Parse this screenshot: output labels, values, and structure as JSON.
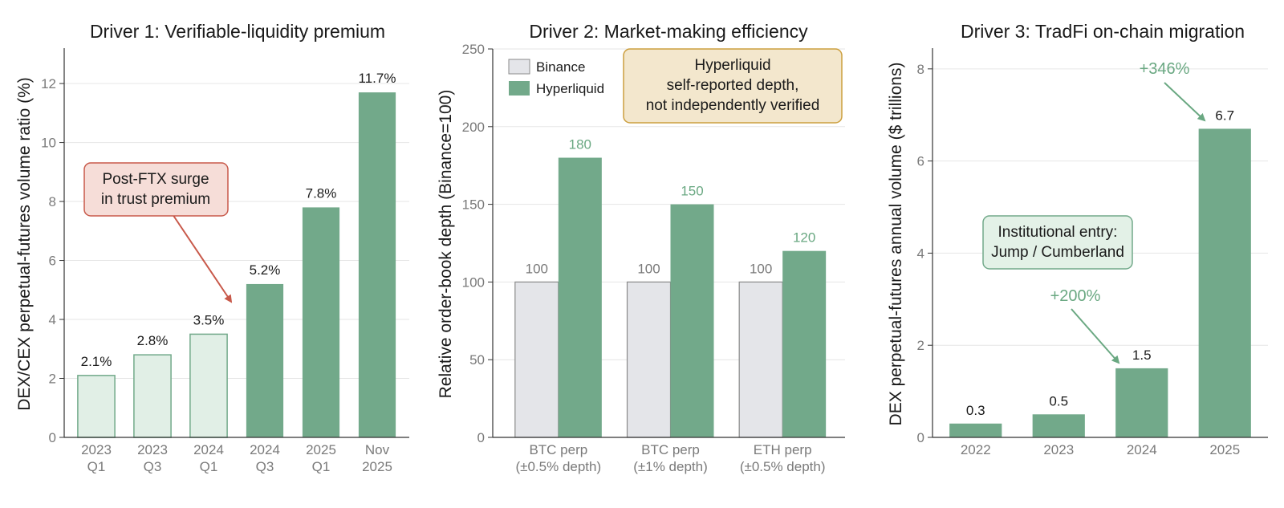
{
  "colors": {
    "dark_green": "#72a98a",
    "light_green": "#e1efe6",
    "light_green_edge": "#72a98a",
    "binance_gray": "#e4e5e9",
    "binance_edge": "#8a8a8a",
    "grid": "#e6e6e6",
    "axis": "#333333",
    "red_arrow": "#c8594a",
    "green_text": "#6aa882",
    "box_red_fill": "#f6ddd8",
    "box_red_edge": "#c8594a",
    "box_tan_fill": "#f3e7cd",
    "box_tan_edge": "#cc9f3e",
    "box_green_fill": "#e3f1e7",
    "box_green_edge": "#72a98a"
  },
  "chart_data": [
    {
      "type": "bar",
      "title": "Driver 1: Verifiable-liquidity premium",
      "ylabel": "DEX/CEX perpetual-futures volume ratio (%)",
      "xlabel": "",
      "ylim": [
        0,
        13.2
      ],
      "yticks": [
        "0",
        "2",
        "4",
        "6",
        "8",
        "10",
        "12"
      ],
      "grid": true,
      "categories": [
        [
          "2023",
          "Q1"
        ],
        [
          "2023",
          "Q3"
        ],
        [
          "2024",
          "Q1"
        ],
        [
          "2024",
          "Q3"
        ],
        [
          "2025",
          "Q1"
        ],
        [
          "Nov",
          "2025"
        ]
      ],
      "values": [
        2.1,
        2.8,
        3.5,
        5.2,
        7.8,
        11.7
      ],
      "value_labels": [
        "2.1%",
        "2.8%",
        "3.5%",
        "5.2%",
        "7.8%",
        "11.7%"
      ],
      "styles": [
        "light",
        "light",
        "light",
        "dark",
        "dark",
        "dark"
      ],
      "annotation": {
        "lines": [
          "Post-FTX surge",
          "in trust premium"
        ],
        "points_to_category": 3
      }
    },
    {
      "type": "bar",
      "title": "Driver 2: Market-making efficiency",
      "ylabel": "Relative order-book depth (Binance=100)",
      "xlabel": "",
      "ylim": [
        0,
        250
      ],
      "yticks": [
        "0",
        "50",
        "100",
        "150",
        "200",
        "250"
      ],
      "grid": true,
      "legend_position": "top-left",
      "categories": [
        [
          "BTC perp",
          "(±0.5% depth)"
        ],
        [
          "BTC perp",
          "(±1% depth)"
        ],
        [
          "ETH perp",
          "(±0.5% depth)"
        ]
      ],
      "series": [
        {
          "name": "Binance",
          "values": [
            100,
            100,
            100
          ],
          "labels": [
            "100",
            "100",
            "100"
          ]
        },
        {
          "name": "Hyperliquid",
          "values": [
            180,
            150,
            120
          ],
          "labels": [
            "180",
            "150",
            "120"
          ]
        }
      ],
      "note": {
        "lines": [
          "Hyperliquid",
          "self-reported depth,",
          "not independently verified"
        ]
      }
    },
    {
      "type": "bar",
      "title": "Driver 3: TradFi on-chain migration",
      "ylabel": "DEX perpetual-futures annual volume ($ trillions)",
      "xlabel": "",
      "ylim": [
        0,
        8.45
      ],
      "yticks": [
        "0",
        "2",
        "4",
        "6",
        "8"
      ],
      "grid": true,
      "categories": [
        [
          "2022"
        ],
        [
          "2023"
        ],
        [
          "2024"
        ],
        [
          "2025"
        ]
      ],
      "values": [
        0.3,
        0.5,
        1.5,
        6.7
      ],
      "value_labels": [
        "0.3",
        "0.5",
        "1.5",
        "6.7"
      ],
      "growth_annotations": [
        {
          "text": "+200%",
          "points_to_category": 2
        },
        {
          "text": "+346%",
          "points_to_category": 3
        }
      ],
      "note": {
        "lines": [
          "Institutional entry:",
          "Jump / Cumberland"
        ]
      }
    }
  ]
}
